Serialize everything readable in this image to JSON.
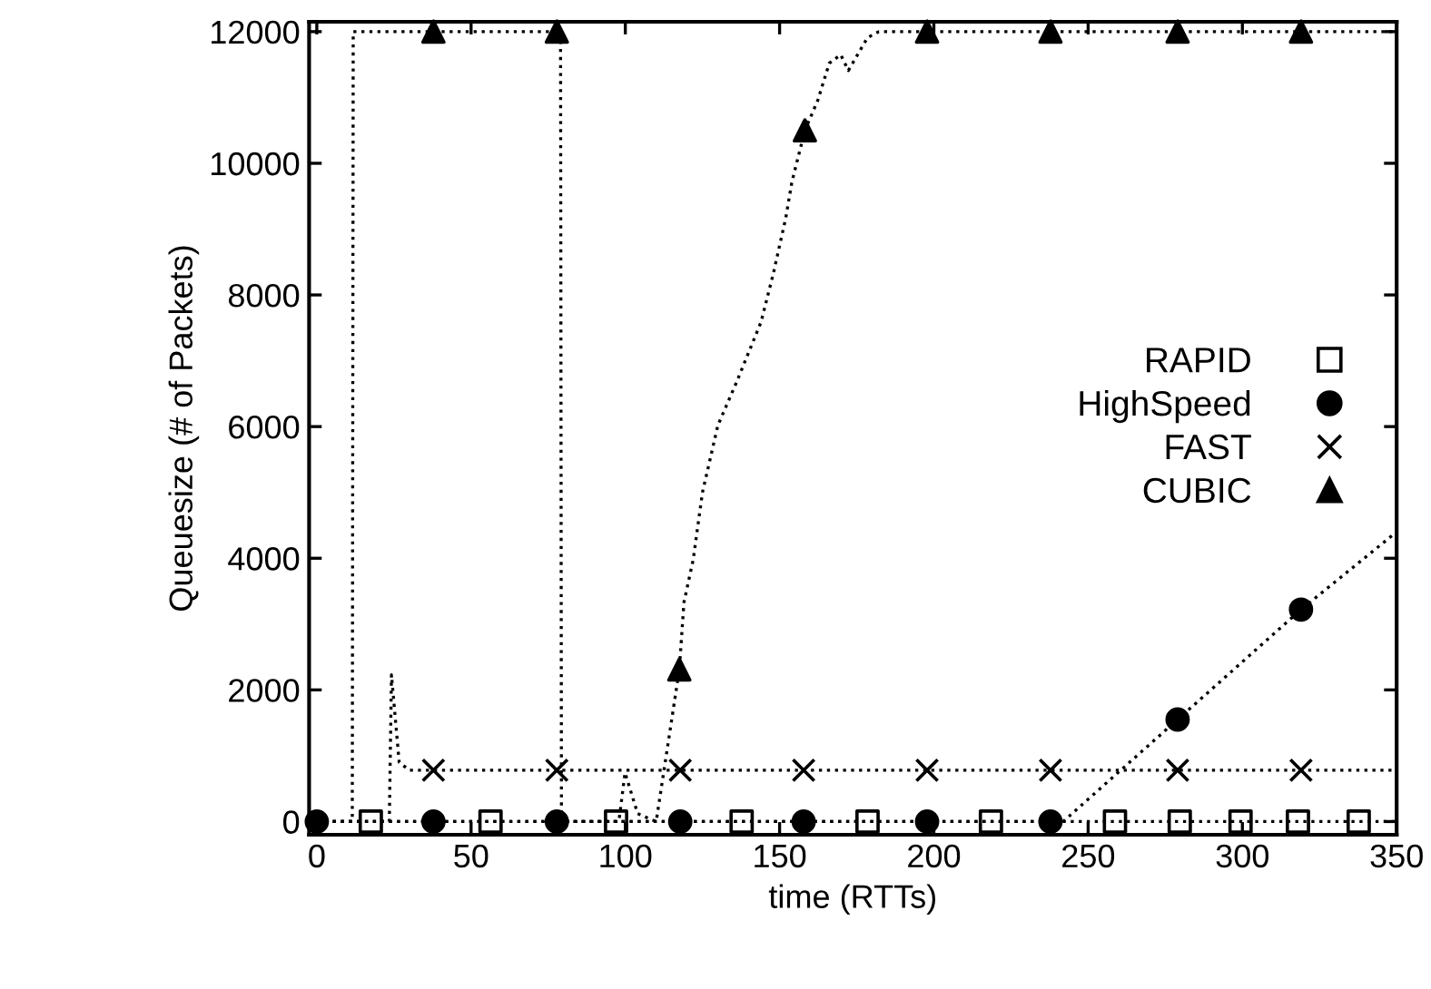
{
  "chart_data": {
    "type": "line",
    "xlabel": "time (RTTs)",
    "ylabel": "Queuesize (# of Packets)",
    "xlim": [
      -2.5,
      350
    ],
    "ylim": [
      -200,
      12150
    ],
    "xticks": [
      0,
      50,
      100,
      150,
      200,
      250,
      300,
      350
    ],
    "yticks": [
      0,
      2000,
      4000,
      6000,
      8000,
      10000,
      12000
    ],
    "grid": false,
    "legend": "right",
    "line_style": "dotted",
    "series": [
      {
        "color": "#000000",
        "x": [
          0,
          350
        ],
        "values": [
          0,
          0
        ]
      },
      {
        "color": "#000000",
        "x": [
          0,
          241.9,
          279,
          319,
          350
        ],
        "values": [
          0,
          0,
          1550,
          3220,
          4400
        ]
      },
      {
        "color": "#000000",
        "x": [
          0,
          23.5,
          24.2,
          26.7,
          30,
          350
        ],
        "values": [
          0,
          0,
          2230,
          900,
          780,
          780
        ]
      },
      {
        "color": "#000000",
        "x": [
          0,
          11.5,
          11.8,
          79,
          79.3,
          97.9,
          99.9,
          104,
          110,
          117.5,
          119,
          122,
          125,
          130,
          136,
          144,
          148,
          152,
          154,
          158.2,
          162.4,
          166.1,
          169.8,
          172.3,
          178.5,
          182.2,
          350
        ],
        "values": [
          0,
          0,
          12000,
          12000,
          0,
          0,
          740,
          120,
          0,
          2310,
          3330,
          3980,
          5000,
          6020,
          6670,
          7590,
          8330,
          9170,
          9720,
          10500,
          10960,
          11520,
          11650,
          11410,
          11910,
          12000,
          12000
        ]
      },
      {
        "type": "scatter",
        "name": "RAPID",
        "color": "#000000",
        "marker": "square",
        "x": [
          17.5,
          56.3,
          97,
          137.7,
          178.5,
          218.5,
          258.7,
          279.7,
          299.4,
          318,
          337.7
        ],
        "values": [
          0,
          0,
          0,
          0,
          0,
          0,
          0,
          0,
          0,
          0,
          0
        ]
      },
      {
        "type": "scatter",
        "name": "HighSpeed",
        "color": "#000000",
        "marker": "circle",
        "x": [
          0,
          37.8,
          77.8,
          117.8,
          157.8,
          197.8,
          237.8,
          279,
          319
        ],
        "values": [
          0,
          0,
          0,
          0,
          0,
          0,
          0,
          1550,
          3220
        ]
      },
      {
        "type": "scatter",
        "name": "FAST",
        "color": "#000000",
        "marker": "cross",
        "x": [
          37.8,
          77.8,
          117.8,
          157.8,
          197.8,
          237.8,
          279,
          319
        ],
        "values": [
          780,
          780,
          780,
          780,
          780,
          780,
          780,
          780
        ]
      },
      {
        "type": "scatter",
        "name": "CUBIC",
        "color": "#000000",
        "marker": "triangle",
        "x": [
          37.8,
          77.8,
          117.5,
          158.2,
          197.8,
          237.8,
          279,
          319
        ],
        "values": [
          12000,
          12000,
          2310,
          10500,
          12000,
          12000,
          12000,
          12000
        ]
      }
    ]
  }
}
